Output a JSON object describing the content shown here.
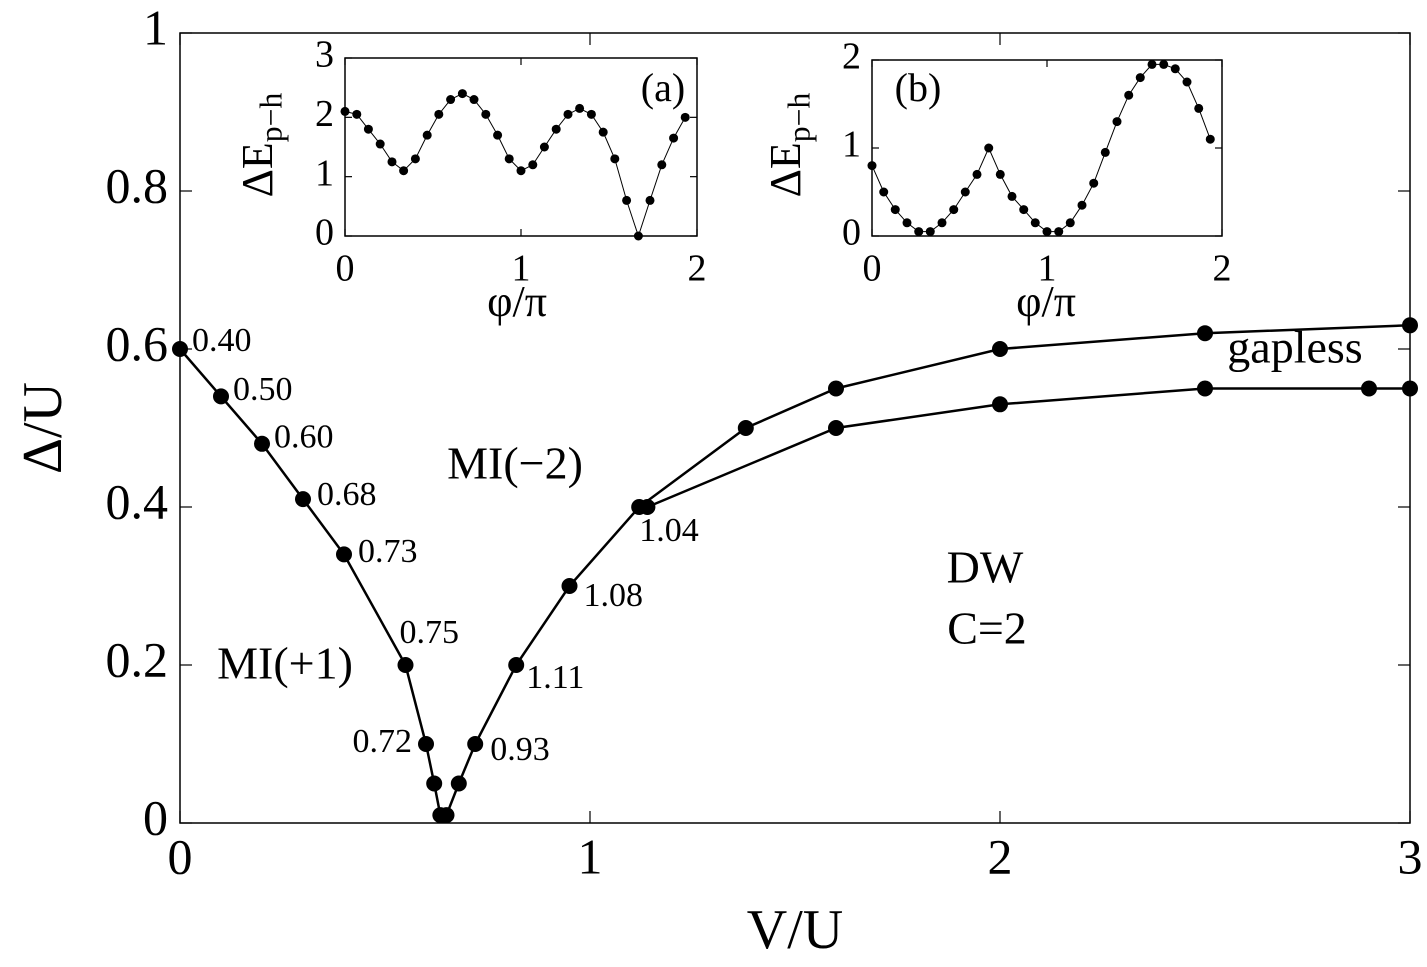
{
  "chart_data": [
    {
      "type": "line",
      "xlabel": "V/U",
      "ylabel": "Δ/U",
      "xlim": [
        0,
        3
      ],
      "ylim": [
        0,
        1
      ],
      "xticks": [
        0,
        1,
        2,
        3
      ],
      "yticks": [
        0,
        0.2,
        0.4,
        0.6,
        0.8,
        1
      ],
      "grid": false,
      "series": [
        {
          "color": "#000000",
          "x": [
            0,
            0.1,
            0.2,
            0.3,
            0.4,
            0.55,
            0.6,
            0.62,
            0.635
          ],
          "values": [
            0.6,
            0.54,
            0.48,
            0.41,
            0.34,
            0.2,
            0.1,
            0.05,
            0.01
          ],
          "point_labels": [
            "0.40",
            "0.50",
            "0.60",
            "0.68",
            "0.73",
            "0.75",
            "0.72",
            null,
            null
          ]
        },
        {
          "color": "#000000",
          "x": [
            0.65,
            0.68,
            0.72,
            0.82,
            0.95,
            1.12,
            1.38,
            1.6,
            2,
            2.5,
            3
          ],
          "values": [
            0.01,
            0.05,
            0.1,
            0.2,
            0.3,
            0.4,
            0.5,
            0.55,
            0.6,
            0.62,
            0.63
          ],
          "point_labels": [
            null,
            null,
            "0.93",
            "1.11",
            "1.08",
            "1.04",
            null,
            null,
            null,
            null,
            null
          ]
        },
        {
          "color": "#000000",
          "x": [
            1.14,
            1.6,
            2,
            2.5,
            2.9,
            3
          ],
          "values": [
            0.4,
            0.5,
            0.53,
            0.55,
            0.55,
            0.55
          ]
        }
      ],
      "annotations": [
        "MI(−2)",
        "MI(+1)",
        "DW",
        "C=2",
        "gapless"
      ]
    },
    {
      "type": "line",
      "panel_label": "(a)",
      "xlabel": "φ/π",
      "ylabel": "ΔE",
      "ylabel_sub": "p−h",
      "xlim": [
        0,
        2
      ],
      "ylim": [
        0,
        3
      ],
      "xticks": [
        0,
        1,
        2
      ],
      "yticks": [
        0,
        1,
        2,
        3
      ],
      "grid": false,
      "series": [
        {
          "color": "#000000",
          "x": [
            0,
            0.067,
            0.133,
            0.2,
            0.267,
            0.333,
            0.4,
            0.467,
            0.533,
            0.6,
            0.667,
            0.733,
            0.8,
            0.867,
            0.933,
            1.0,
            1.067,
            1.133,
            1.2,
            1.267,
            1.333,
            1.4,
            1.467,
            1.533,
            1.6,
            1.667,
            1.733,
            1.8,
            1.867,
            1.933
          ],
          "values": [
            2.1,
            2.05,
            1.8,
            1.55,
            1.25,
            1.1,
            1.3,
            1.7,
            2.05,
            2.3,
            2.4,
            2.3,
            2.05,
            1.7,
            1.3,
            1.1,
            1.2,
            1.5,
            1.8,
            2.05,
            2.15,
            2.05,
            1.75,
            1.3,
            0.6,
            0,
            0.6,
            1.2,
            1.65,
            2.0
          ]
        }
      ]
    },
    {
      "type": "line",
      "panel_label": "(b)",
      "xlabel": "φ/π",
      "ylabel": "ΔE",
      "ylabel_sub": "p−h",
      "xlim": [
        0,
        2
      ],
      "ylim": [
        0,
        2
      ],
      "xticks": [
        0,
        1,
        2
      ],
      "yticks": [
        0,
        1,
        2
      ],
      "grid": false,
      "series": [
        {
          "color": "#000000",
          "x": [
            0,
            0.067,
            0.133,
            0.2,
            0.267,
            0.333,
            0.4,
            0.467,
            0.533,
            0.6,
            0.667,
            0.733,
            0.8,
            0.867,
            0.933,
            1.0,
            1.067,
            1.133,
            1.2,
            1.267,
            1.333,
            1.4,
            1.467,
            1.533,
            1.6,
            1.667,
            1.733,
            1.8,
            1.867,
            1.933
          ],
          "values": [
            0.8,
            0.5,
            0.3,
            0.15,
            0.05,
            0.05,
            0.15,
            0.3,
            0.5,
            0.7,
            1.0,
            0.7,
            0.45,
            0.3,
            0.15,
            0.05,
            0.05,
            0.15,
            0.35,
            0.6,
            0.95,
            1.3,
            1.6,
            1.8,
            1.95,
            1.95,
            1.9,
            1.75,
            1.45,
            1.1
          ]
        }
      ]
    }
  ]
}
